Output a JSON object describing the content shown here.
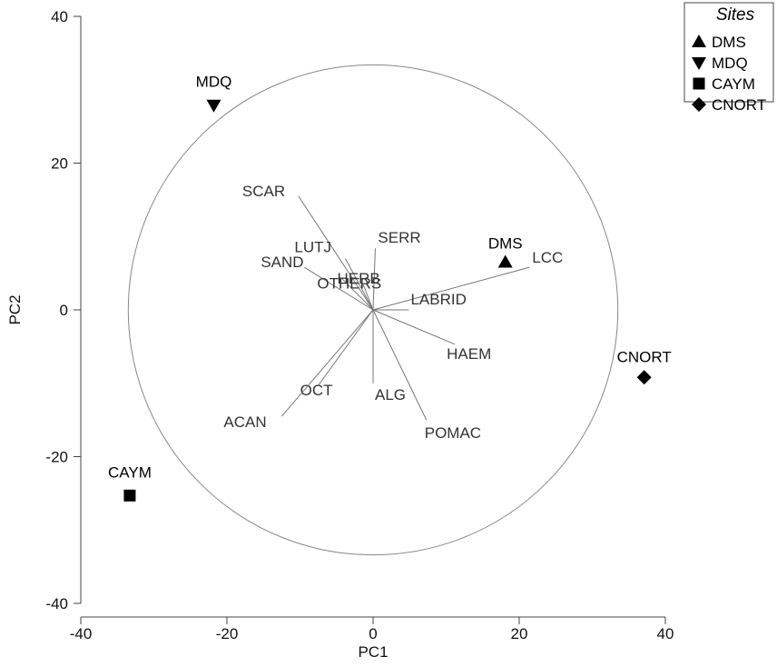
{
  "chart_data": {
    "type": "scatter",
    "subtype": "PCA biplot",
    "xlabel": "PC1",
    "ylabel": "PC2",
    "xlim": [
      -40,
      40
    ],
    "ylim": [
      -40,
      40
    ],
    "x_ticks": [
      -40,
      -20,
      0,
      20,
      40
    ],
    "y_ticks": [
      -40,
      -20,
      0,
      20,
      40
    ],
    "grid": false,
    "circle_radius": 33.5,
    "sites": {
      "title": "Sites",
      "legend_position": "top-right",
      "points": [
        {
          "name": "DMS",
          "marker": "triangle-up",
          "x": 18.1,
          "y": 6.5
        },
        {
          "name": "MDQ",
          "marker": "triangle-down",
          "x": -21.8,
          "y": 27.9
        },
        {
          "name": "CAYM",
          "marker": "square",
          "x": -33.3,
          "y": -25.3
        },
        {
          "name": "CNORT",
          "marker": "diamond",
          "x": 37.1,
          "y": -9.2
        }
      ]
    },
    "vectors": [
      {
        "name": "SCAR",
        "x": -10.2,
        "y": 15.5
      },
      {
        "name": "SAND",
        "x": -9.4,
        "y": 5.8
      },
      {
        "name": "LUTJ",
        "x": -3.8,
        "y": 7.0
      },
      {
        "name": "SERR",
        "x": 0.3,
        "y": 8.4
      },
      {
        "name": "OTHERS",
        "x": -4.3,
        "y": 4.3
      },
      {
        "name": "HERB",
        "x": -1.8,
        "y": 4.6
      },
      {
        "name": "LCC",
        "x": 21.4,
        "y": 5.8
      },
      {
        "name": "LABRID",
        "x": 4.9,
        "y": 0.0
      },
      {
        "name": "HAEM",
        "x": 11.2,
        "y": -4.7
      },
      {
        "name": "ALG",
        "x": 0.0,
        "y": -10.0
      },
      {
        "name": "POMAC",
        "x": 7.3,
        "y": -15.0
      },
      {
        "name": "OCT",
        "x": -7.5,
        "y": -10.3
      },
      {
        "name": "ACAN",
        "x": -12.5,
        "y": -14.5
      }
    ]
  }
}
